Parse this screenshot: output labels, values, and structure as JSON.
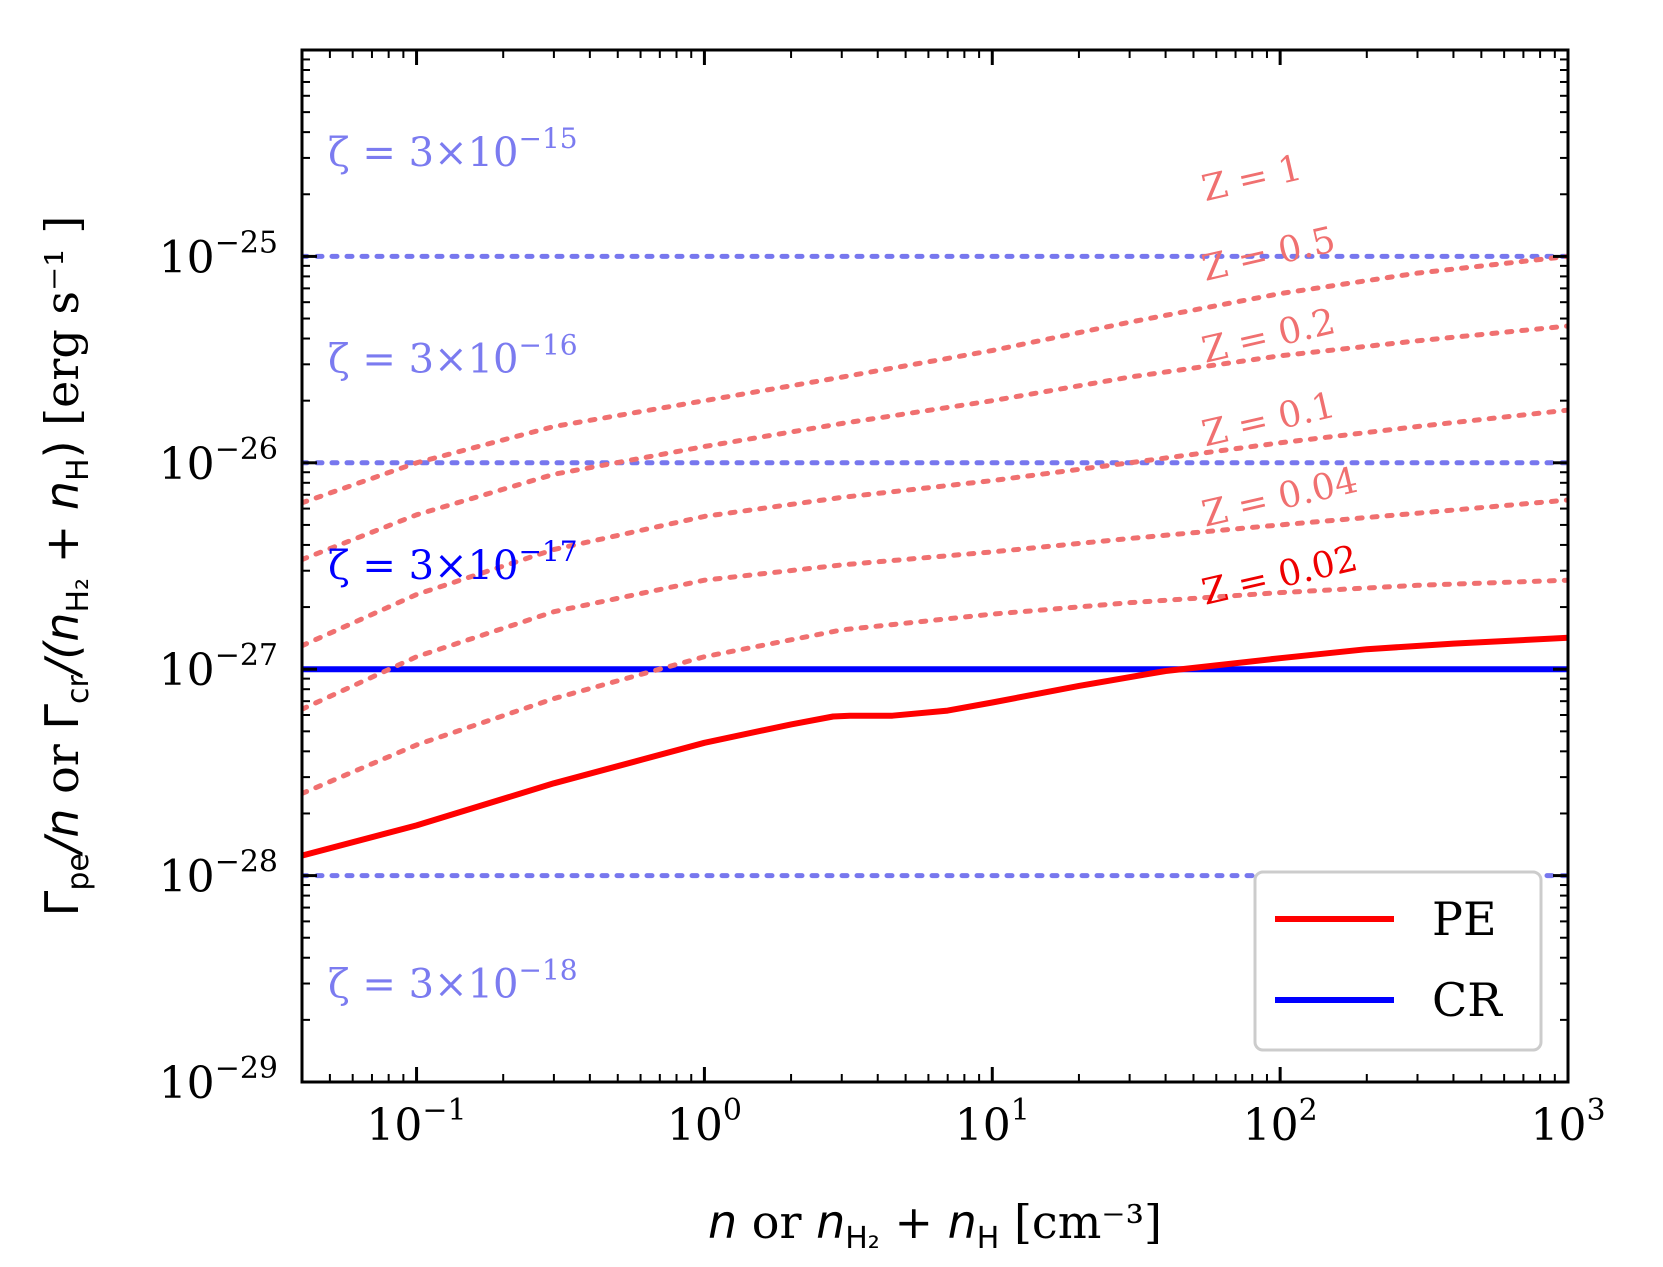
{
  "chart_data": {
    "type": "line",
    "xscale": "log",
    "yscale": "log",
    "xlim": [
      0.04,
      1000
    ],
    "ylim": [
      1e-29,
      1e-24
    ],
    "xlabel": {
      "main_italic": "n",
      "or": " or ",
      "n2": "n",
      "sub2": "H₂",
      "plus": " + ",
      "n3": "n",
      "sub3": "H",
      "unit": " [cm⁻³]"
    },
    "ylabel": {
      "gamma1": "Γ",
      "sub1": "pe",
      "slash_n": "/n",
      "or": " or ",
      "gamma2": "Γ",
      "sub2": "cr",
      "rest1": "/(n",
      "sub3": "H₂",
      "rest2": " + n",
      "sub4": "H",
      "rest3": ")",
      "unit": "   [erg s⁻¹ ]"
    },
    "xticks": [
      {
        "value": 0.1,
        "base": "10",
        "exp": "−1"
      },
      {
        "value": 1,
        "base": "10",
        "exp": "0"
      },
      {
        "value": 10,
        "base": "10",
        "exp": "1"
      },
      {
        "value": 100,
        "base": "10",
        "exp": "2"
      },
      {
        "value": 1000,
        "base": "10",
        "exp": "3"
      }
    ],
    "yticks": [
      {
        "value": 1e-29,
        "base": "10",
        "exp": "−29"
      },
      {
        "value": 1e-28,
        "base": "10",
        "exp": "−28"
      },
      {
        "value": 1e-27,
        "base": "10",
        "exp": "−27"
      },
      {
        "value": 1e-26,
        "base": "10",
        "exp": "−26"
      },
      {
        "value": 1e-25,
        "base": "10",
        "exp": "−25"
      }
    ],
    "cr_lines": [
      {
        "label": "ζ = 3×10",
        "exp": "−15",
        "y": 1e-25,
        "style": "dotted",
        "color": "#7777ee",
        "label_color": "#7b7bf0",
        "label_y": 3.2e-25
      },
      {
        "label": "ζ = 3×10",
        "exp": "−16",
        "y": 1e-26,
        "style": "dotted",
        "color": "#7777ee",
        "label_color": "#7b7bf0",
        "label_y": 3.2e-26
      },
      {
        "label": "ζ = 3×10",
        "exp": "−17",
        "y": 1e-27,
        "style": "solid",
        "color": "#0000ff",
        "label_color": "#0000ff",
        "label_y": 3.2e-27
      },
      {
        "label": "ζ = 3×10",
        "exp": "−18",
        "y": 1e-28,
        "style": "dotted",
        "color": "#7777ee",
        "label_color": "#7b7bf0",
        "label_y": 3e-29
      }
    ],
    "pe_series": [
      {
        "name": "Z = 1",
        "style": "dotted",
        "color": "#f07070",
        "x": [
          0.04,
          0.1,
          0.3,
          1,
          3,
          10,
          30,
          100,
          300,
          1000
        ],
        "y": [
          6.4e-27,
          1e-26,
          1.5e-26,
          2e-26,
          2.6e-26,
          3.5e-26,
          4.8e-26,
          6.6e-26,
          8.3e-26,
          1e-25
        ],
        "label_x": 55,
        "label_y": 1.85e-25,
        "label_angle": -13
      },
      {
        "name": "Z = 0.5",
        "style": "dotted",
        "color": "#f07070",
        "x": [
          0.04,
          0.1,
          0.3,
          1,
          3,
          10,
          30,
          100,
          300,
          1000
        ],
        "y": [
          3.4e-27,
          5.6e-27,
          8.8e-27,
          1.2e-26,
          1.55e-26,
          2e-26,
          2.6e-26,
          3.3e-26,
          3.9e-26,
          4.6e-26
        ],
        "label_x": 55,
        "label_y": 7.6e-26,
        "label_angle": -13
      },
      {
        "name": "Z = 0.2",
        "style": "dotted",
        "color": "#f07070",
        "x": [
          0.04,
          0.1,
          0.3,
          1,
          3,
          10,
          30,
          100,
          300,
          1000
        ],
        "y": [
          1.3e-27,
          2.3e-27,
          3.8e-27,
          5.5e-27,
          6.8e-27,
          8.2e-27,
          1e-26,
          1.25e-26,
          1.5e-26,
          1.8e-26
        ],
        "label_x": 55,
        "label_y": 3.05e-26,
        "label_angle": -13
      },
      {
        "name": "Z = 0.1",
        "style": "dotted",
        "color": "#f07070",
        "x": [
          0.04,
          0.1,
          0.3,
          1,
          3,
          10,
          30,
          100,
          300,
          1000
        ],
        "y": [
          6.4e-28,
          1.15e-27,
          1.9e-27,
          2.7e-27,
          3.2e-27,
          3.7e-27,
          4.3e-27,
          5e-27,
          5.7e-27,
          6.6e-27
        ],
        "label_x": 55,
        "label_y": 1.2e-26,
        "label_angle": -13
      },
      {
        "name": "Z = 0.04",
        "style": "dotted",
        "color": "#f07070",
        "x": [
          0.04,
          0.1,
          0.3,
          1,
          3,
          10,
          30,
          100,
          300,
          1000
        ],
        "y": [
          2.5e-28,
          4.3e-28,
          7.2e-28,
          1.15e-27,
          1.55e-27,
          1.85e-27,
          2.1e-27,
          2.35e-27,
          2.55e-27,
          2.7e-27
        ],
        "label_x": 55,
        "label_y": 4.9e-27,
        "label_angle": -13
      },
      {
        "name": "Z = 0.02",
        "style": "solid",
        "color": "#ff0000",
        "x": [
          0.04,
          0.1,
          0.3,
          1,
          2,
          2.8,
          3.2,
          4.5,
          7,
          10,
          20,
          40,
          100,
          200,
          400,
          1000
        ],
        "y": [
          1.25e-28,
          1.75e-28,
          2.8e-28,
          4.4e-28,
          5.4e-28,
          5.9e-28,
          5.95e-28,
          5.95e-28,
          6.3e-28,
          6.9e-28,
          8.3e-28,
          9.8e-28,
          1.13e-27,
          1.25e-27,
          1.33e-27,
          1.42e-27
        ],
        "label_x": 55,
        "label_y": 2.05e-27,
        "label_angle": -13,
        "label_color": "#ee0000"
      }
    ],
    "legend": {
      "position": "lower-right",
      "entries": [
        {
          "label": "PE",
          "color": "#ff0000"
        },
        {
          "label": "CR",
          "color": "#0000ff"
        }
      ]
    }
  }
}
